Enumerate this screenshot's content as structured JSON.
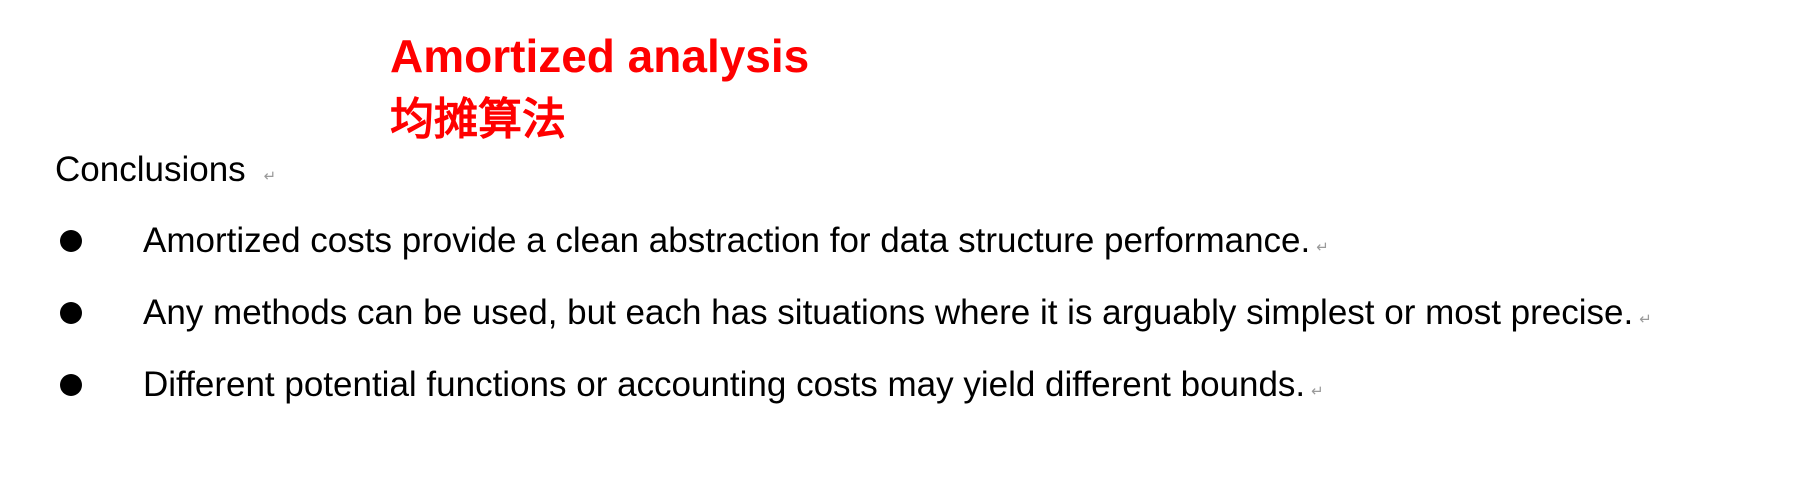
{
  "title": {
    "line1": "Amortized analysis",
    "line2": "均摊算法"
  },
  "heading": {
    "text": "Conclusions"
  },
  "paragraph_mark": "↵",
  "bullets": [
    {
      "text": "Amortized costs provide a clean abstraction for data structure performance."
    },
    {
      "text": "Any methods can be used, but each has situations where it is arguably simplest or most precise."
    },
    {
      "text": "Different potential functions or accounting costs may yield different bounds."
    }
  ],
  "colors": {
    "title": "#ff0000",
    "body": "#000000",
    "formatting_marks": "#9a9a9a"
  }
}
